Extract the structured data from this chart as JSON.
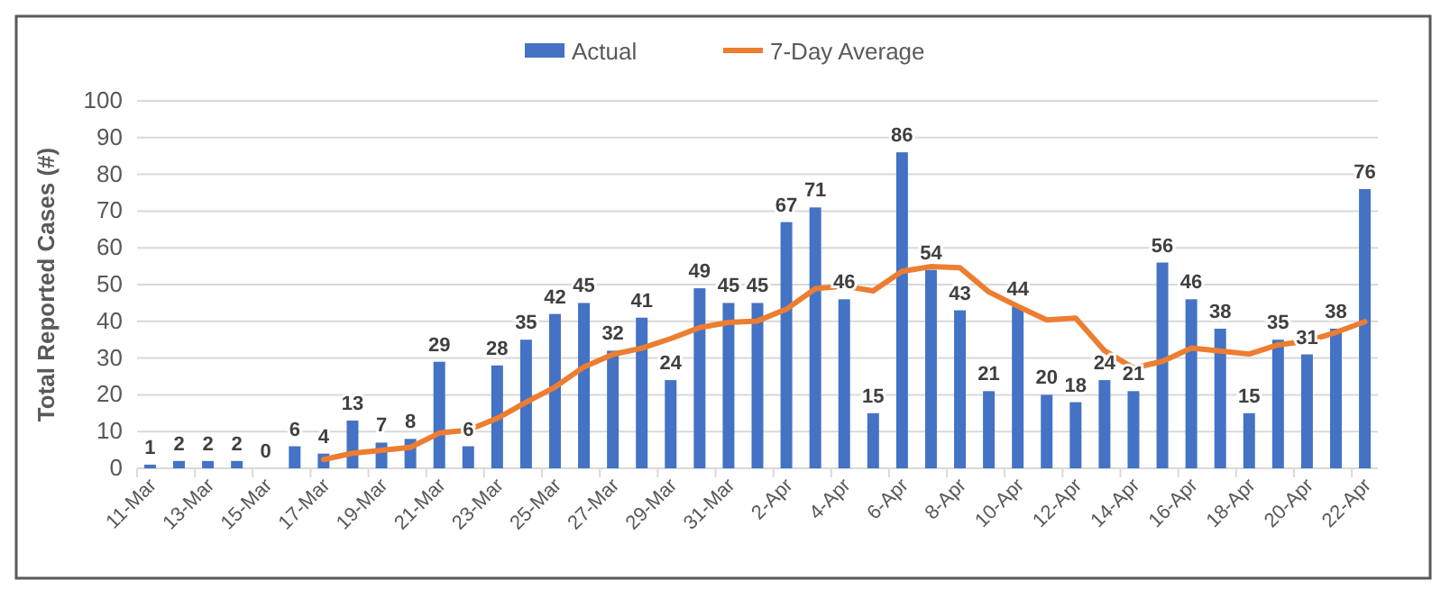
{
  "chart_data": {
    "type": "bar",
    "ylabel": "Total Reported Cases (#)",
    "categories": [
      "11-Mar",
      null,
      "13-Mar",
      null,
      "15-Mar",
      null,
      "17-Mar",
      null,
      "19-Mar",
      null,
      "21-Mar",
      null,
      "23-Mar",
      null,
      "25-Mar",
      null,
      "27-Mar",
      null,
      "29-Mar",
      null,
      "31-Mar",
      null,
      "2-Apr",
      null,
      "4-Apr",
      null,
      "6-Apr",
      null,
      "8-Apr",
      null,
      "10-Apr",
      null,
      "12-Apr",
      null,
      "14-Apr",
      null,
      "16-Apr",
      null,
      "18-Apr",
      null,
      "20-Apr",
      null,
      "22-Apr"
    ],
    "series": [
      {
        "name": "Actual",
        "color": "#4472c4",
        "data_labels": true,
        "values": [
          1,
          2,
          2,
          2,
          0,
          6,
          4,
          13,
          7,
          8,
          29,
          6,
          28,
          35,
          42,
          45,
          32,
          41,
          24,
          49,
          45,
          45,
          67,
          71,
          46,
          15,
          86,
          54,
          43,
          21,
          44,
          20,
          18,
          24,
          21,
          56,
          46,
          38,
          15,
          35,
          31,
          38,
          76
        ]
      },
      {
        "name": "7-Day Average",
        "type": "line",
        "color": "#ed7d31",
        "values": [
          null,
          null,
          null,
          null,
          null,
          null,
          2.4,
          4.1,
          4.9,
          5.7,
          9.6,
          10.4,
          13.6,
          18.0,
          22.1,
          27.6,
          31.0,
          32.7,
          35.3,
          38.3,
          39.7,
          40.1,
          43.3,
          48.9,
          49.6,
          48.3,
          53.6,
          54.9,
          54.6,
          48.0,
          44.1,
          40.4,
          40.9,
          32.0,
          27.3,
          29.1,
          32.7,
          31.9,
          31.1,
          33.6,
          34.6,
          37.0,
          39.9
        ]
      }
    ],
    "ylim": [
      0,
      100
    ],
    "yticks": [
      0,
      10,
      20,
      30,
      40,
      50,
      60,
      70,
      80,
      90,
      100
    ],
    "grid": "y",
    "legend": "top",
    "marker": "none"
  }
}
